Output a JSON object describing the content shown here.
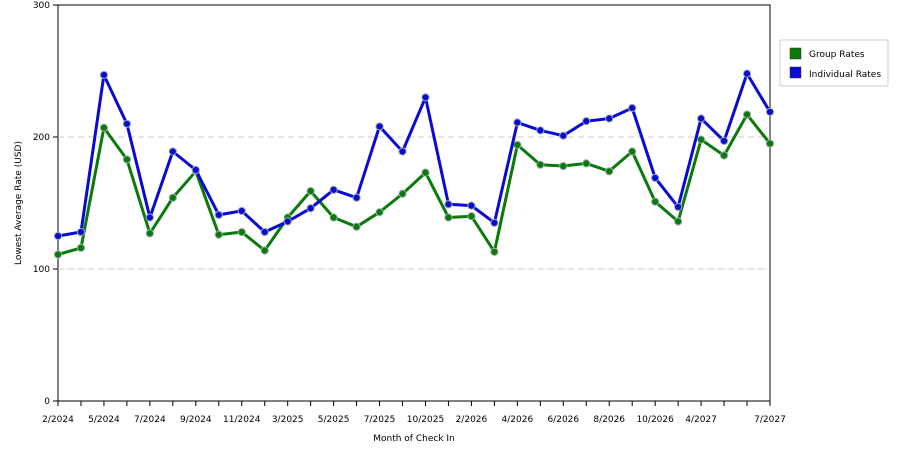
{
  "chart_data": {
    "type": "line",
    "xlabel": "Month of Check In",
    "ylabel": "Lowest Average Rate (USD)",
    "ylim": [
      0,
      300
    ],
    "yticks": [
      0,
      100,
      200,
      300
    ],
    "grid": "horizontal dashed at 100 and 200",
    "legend_position": "right",
    "x_tick_labels": [
      {
        "index": 0,
        "label": "2/2024"
      },
      {
        "index": 2,
        "label": "5/2024"
      },
      {
        "index": 4,
        "label": "7/2024"
      },
      {
        "index": 6,
        "label": "9/2024"
      },
      {
        "index": 8,
        "label": "11/2024"
      },
      {
        "index": 10,
        "label": "3/2025"
      },
      {
        "index": 12,
        "label": "5/2025"
      },
      {
        "index": 14,
        "label": "7/2025"
      },
      {
        "index": 16,
        "label": "10/2025"
      },
      {
        "index": 18,
        "label": "2/2026"
      },
      {
        "index": 20,
        "label": "4/2026"
      },
      {
        "index": 22,
        "label": "6/2026"
      },
      {
        "index": 24,
        "label": "8/2026"
      },
      {
        "index": 26,
        "label": "10/2026"
      },
      {
        "index": 28,
        "label": "4/2027"
      },
      {
        "index": 31,
        "label": "7/2027"
      }
    ],
    "series": [
      {
        "name": "Group Rates",
        "color": "#0a7a0a",
        "values": [
          111,
          116,
          207,
          183,
          127,
          154,
          174,
          126,
          128,
          114,
          139,
          159,
          139,
          132,
          143,
          157,
          173,
          139,
          140,
          113,
          194,
          179,
          178,
          180,
          174,
          189,
          151,
          136,
          198,
          186,
          217,
          195
        ]
      },
      {
        "name": "Individual Rates",
        "color": "#0a0ad2",
        "values": [
          125,
          128,
          247,
          210,
          139,
          189,
          175,
          141,
          144,
          128,
          136,
          146,
          160,
          154,
          208,
          189,
          230,
          149,
          148,
          135,
          211,
          205,
          201,
          212,
          214,
          222,
          169,
          147,
          214,
          197,
          248,
          219
        ]
      }
    ]
  },
  "legend": {
    "items": [
      {
        "label": "Group Rates",
        "color": "#0a7a0a"
      },
      {
        "label": "Individual Rates",
        "color": "#0a0ad2"
      }
    ]
  }
}
